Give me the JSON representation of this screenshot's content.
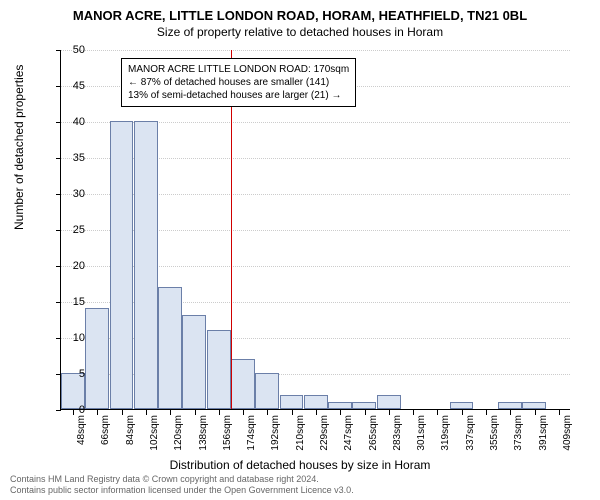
{
  "title_main": "MANOR ACRE, LITTLE LONDON ROAD, HORAM, HEATHFIELD, TN21 0BL",
  "title_sub": "Size of property relative to detached houses in Horam",
  "y_axis_label": "Number of detached properties",
  "x_axis_label": "Distribution of detached houses by size in Horam",
  "chart": {
    "type": "histogram",
    "ylim": [
      0,
      50
    ],
    "ytick_step": 5,
    "bar_fill": "#dbe4f2",
    "bar_stroke": "#6b7fa8",
    "grid_color": "#cccccc",
    "background_color": "#ffffff",
    "marker_color": "#d00000",
    "marker_x_index": 7,
    "x_labels": [
      "48sqm",
      "66sqm",
      "84sqm",
      "102sqm",
      "120sqm",
      "138sqm",
      "156sqm",
      "174sqm",
      "192sqm",
      "210sqm",
      "229sqm",
      "247sqm",
      "265sqm",
      "283sqm",
      "301sqm",
      "319sqm",
      "337sqm",
      "355sqm",
      "373sqm",
      "391sqm",
      "409sqm"
    ],
    "values": [
      5,
      14,
      40,
      40,
      17,
      13,
      11,
      7,
      5,
      2,
      2,
      1,
      1,
      2,
      0,
      0,
      1,
      0,
      1,
      1,
      0
    ]
  },
  "annotation": {
    "line1": "MANOR ACRE LITTLE LONDON ROAD: 170sqm",
    "line2": "← 87% of detached houses are smaller (141)",
    "line3": "13% of semi-detached houses are larger (21) →"
  },
  "footer_line1": "Contains HM Land Registry data © Crown copyright and database right 2024.",
  "footer_line2": "Contains public sector information licensed under the Open Government Licence v3.0."
}
